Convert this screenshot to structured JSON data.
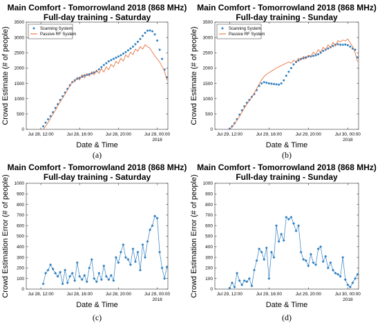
{
  "chart_data": [
    {
      "panel_id": "a",
      "type": "line",
      "caption": "(a)",
      "title_line1": "Main Comfort - Tomorrowland 2018 (868 MHz)",
      "title_line2": "Full-day training - Saturday",
      "xlabel": "Date & Time",
      "ylabel": "Crowd Estimate (# of people)",
      "xlim": [
        10.5,
        25.1
      ],
      "ylim": [
        0,
        3500
      ],
      "yticks": [
        0,
        500,
        1000,
        1500,
        2000,
        2500,
        3000,
        3500
      ],
      "xticks": [
        {
          "x": 12,
          "label": "Jul 28, 12:00"
        },
        {
          "x": 16,
          "label": "Jul 28, 16:00"
        },
        {
          "x": 20,
          "label": "Jul 28, 20:00"
        },
        {
          "x": 24,
          "label": "Jul 29, 00:00"
        }
      ],
      "year_label": "2018",
      "grid": false,
      "legend_position": "top-left",
      "series": [
        {
          "name": "Scanning System",
          "color": "#2f7fc1",
          "style": "markers",
          "x": [
            12.25,
            12.5,
            12.75,
            13.0,
            13.25,
            13.5,
            13.75,
            14.0,
            14.25,
            14.5,
            14.75,
            15.0,
            15.25,
            15.5,
            15.75,
            16.0,
            16.25,
            16.5,
            16.75,
            17.0,
            17.25,
            17.5,
            17.75,
            18.0,
            18.25,
            18.5,
            18.75,
            19.0,
            19.25,
            19.5,
            19.75,
            20.0,
            20.25,
            20.5,
            20.75,
            21.0,
            21.25,
            21.5,
            21.75,
            22.0,
            22.25,
            22.5,
            22.75,
            23.0,
            23.25,
            23.5,
            23.75,
            24.0,
            24.25,
            24.5,
            24.75,
            25.0
          ],
          "y": [
            100,
            220,
            330,
            430,
            560,
            700,
            820,
            960,
            1080,
            1200,
            1320,
            1440,
            1540,
            1600,
            1650,
            1680,
            1720,
            1760,
            1780,
            1800,
            1830,
            1860,
            1900,
            1960,
            2030,
            2100,
            2160,
            2220,
            2260,
            2300,
            2340,
            2380,
            2420,
            2470,
            2520,
            2580,
            2640,
            2700,
            2780,
            2860,
            2950,
            3050,
            3150,
            3220,
            3230,
            3200,
            3100,
            2900,
            2600,
            2300,
            1950,
            1700
          ]
        },
        {
          "name": "Passive RF System",
          "color": "#e4632b",
          "style": "line",
          "x": [
            12.25,
            12.5,
            12.75,
            13.0,
            13.25,
            13.5,
            13.75,
            14.0,
            14.25,
            14.5,
            14.75,
            15.0,
            15.25,
            15.5,
            15.75,
            16.0,
            16.25,
            16.5,
            16.75,
            17.0,
            17.25,
            17.5,
            17.75,
            18.0,
            18.25,
            18.5,
            18.75,
            19.0,
            19.25,
            19.5,
            19.75,
            20.0,
            20.25,
            20.5,
            20.75,
            21.0,
            21.25,
            21.5,
            21.75,
            22.0,
            22.25,
            22.5,
            22.75,
            23.0,
            23.25,
            23.5,
            23.75,
            24.0,
            24.25,
            24.5,
            24.75,
            25.0
          ],
          "y": [
            0,
            100,
            220,
            360,
            500,
            620,
            770,
            900,
            1020,
            1150,
            1290,
            1420,
            1560,
            1550,
            1700,
            1610,
            1780,
            1680,
            1820,
            1740,
            1880,
            1780,
            1930,
            1830,
            1980,
            1870,
            2040,
            1950,
            2120,
            2040,
            2220,
            2150,
            2320,
            2230,
            2430,
            2350,
            2520,
            2440,
            2620,
            2550,
            2700,
            2620,
            2760,
            2700,
            2650,
            2520,
            2400,
            2300,
            2200,
            2050,
            1900,
            1600
          ]
        }
      ]
    },
    {
      "panel_id": "b",
      "type": "line",
      "caption": "(b)",
      "title_line1": "Main Comfort - Tomorrowland 2018 (868 MHz)",
      "title_line2": "Full-day training - Sunday",
      "xlabel": "Date & Time",
      "ylabel": "Crowd Estimate (# of people)",
      "xlim": [
        10.5,
        25.1
      ],
      "ylim": [
        0,
        3500
      ],
      "yticks": [
        0,
        500,
        1000,
        1500,
        2000,
        2500,
        3000,
        3500
      ],
      "xticks": [
        {
          "x": 12,
          "label": "Jul 29, 12:00"
        },
        {
          "x": 16,
          "label": "Jul 29, 16:00"
        },
        {
          "x": 20,
          "label": "Jul 29, 20:00"
        },
        {
          "x": 24,
          "label": "Jul 30, 00:00"
        }
      ],
      "year_label": "2018",
      "grid": false,
      "legend_position": "top-left",
      "series": [
        {
          "name": "Scanning System",
          "color": "#2f7fc1",
          "style": "markers",
          "x": [
            12.0,
            12.25,
            12.5,
            12.75,
            13.0,
            13.25,
            13.5,
            13.75,
            14.0,
            14.25,
            14.5,
            14.75,
            15.0,
            15.25,
            15.5,
            15.75,
            16.0,
            16.25,
            16.5,
            16.75,
            17.0,
            17.25,
            17.5,
            17.75,
            18.0,
            18.25,
            18.5,
            18.75,
            19.0,
            19.25,
            19.5,
            19.75,
            20.0,
            20.25,
            20.5,
            20.75,
            21.0,
            21.25,
            21.5,
            21.75,
            22.0,
            22.25,
            22.5,
            22.75,
            23.0,
            23.25,
            23.5,
            23.75,
            24.0,
            24.25,
            24.5,
            24.75,
            25.0
          ],
          "y": [
            20,
            100,
            200,
            330,
            480,
            620,
            750,
            870,
            960,
            1060,
            1150,
            1280,
            1420,
            1500,
            1540,
            1520,
            1500,
            1490,
            1480,
            1470,
            1460,
            1500,
            1600,
            1750,
            1880,
            2000,
            2120,
            2200,
            2250,
            2300,
            2320,
            2350,
            2380,
            2380,
            2400,
            2420,
            2450,
            2500,
            2560,
            2600,
            2640,
            2680,
            2720,
            2760,
            2780,
            2760,
            2760,
            2770,
            2750,
            2700,
            2640,
            2600,
            2350
          ]
        },
        {
          "name": "Passive RF System",
          "color": "#e4632b",
          "style": "line",
          "x": [
            12.0,
            12.25,
            12.5,
            12.75,
            13.0,
            13.25,
            13.5,
            13.75,
            14.0,
            14.25,
            14.5,
            14.75,
            15.0,
            15.25,
            15.5,
            15.75,
            16.0,
            16.25,
            16.5,
            16.75,
            17.0,
            17.25,
            17.5,
            17.75,
            18.0,
            18.25,
            18.5,
            18.75,
            19.0,
            19.25,
            19.5,
            19.75,
            20.0,
            20.25,
            20.5,
            20.75,
            21.0,
            21.25,
            21.5,
            21.75,
            22.0,
            22.25,
            22.5,
            22.75,
            23.0,
            23.25,
            23.5,
            23.75,
            24.0,
            24.25,
            24.5,
            24.75,
            25.0
          ],
          "y": [
            0,
            80,
            180,
            300,
            420,
            560,
            700,
            820,
            930,
            1050,
            1180,
            1330,
            1480,
            1620,
            1720,
            1800,
            1850,
            1900,
            1950,
            2000,
            2040,
            2080,
            2120,
            2160,
            2200,
            2160,
            2260,
            2200,
            2320,
            2260,
            2380,
            2300,
            2420,
            2380,
            2520,
            2440,
            2600,
            2520,
            2680,
            2600,
            2760,
            2660,
            2840,
            2720,
            2900,
            2850,
            2920,
            2880,
            2950,
            2820,
            2700,
            2500,
            2200
          ]
        }
      ]
    },
    {
      "panel_id": "c",
      "type": "line",
      "caption": "(c)",
      "title_line1": "Main Comfort - Tomorrowland 2018 (868 MHz)",
      "title_line2": "Full-day training - Saturday",
      "xlabel": "Date & Time",
      "ylabel": "Crowd Estimation Error (# of people)",
      "xlim": [
        10.5,
        25.1
      ],
      "ylim": [
        0,
        1000
      ],
      "yticks": [
        0,
        100,
        200,
        300,
        400,
        500,
        600,
        700,
        800,
        900,
        1000
      ],
      "xticks": [
        {
          "x": 12,
          "label": "Jul 28, 12:00"
        },
        {
          "x": 16,
          "label": "Jul 28, 16:00"
        },
        {
          "x": 20,
          "label": "Jul 28, 20:00"
        },
        {
          "x": 24,
          "label": "Jul 29, 00:00"
        }
      ],
      "year_label": "2018",
      "grid": false,
      "series": [
        {
          "color": "#2f7fc1",
          "style": "line-markers",
          "x": [
            12.25,
            12.5,
            12.75,
            13.0,
            13.25,
            13.5,
            13.75,
            14.0,
            14.25,
            14.5,
            14.75,
            15.0,
            15.25,
            15.5,
            15.75,
            16.0,
            16.25,
            16.5,
            16.75,
            17.0,
            17.25,
            17.5,
            17.75,
            18.0,
            18.25,
            18.5,
            18.75,
            19.0,
            19.25,
            19.5,
            19.75,
            20.0,
            20.25,
            20.5,
            20.75,
            21.0,
            21.25,
            21.5,
            21.75,
            22.0,
            22.25,
            22.5,
            22.75,
            23.0,
            23.25,
            23.5,
            23.75,
            24.0,
            24.25,
            24.5,
            24.75,
            25.0
          ],
          "y": [
            50,
            150,
            180,
            230,
            190,
            150,
            120,
            160,
            50,
            180,
            60,
            120,
            150,
            80,
            250,
            120,
            90,
            130,
            70,
            200,
            280,
            100,
            70,
            150,
            90,
            220,
            120,
            90,
            130,
            80,
            300,
            250,
            350,
            420,
            300,
            280,
            230,
            380,
            260,
            350,
            180,
            420,
            300,
            450,
            560,
            600,
            690,
            670,
            350,
            200,
            100,
            210
          ]
        }
      ]
    },
    {
      "panel_id": "d",
      "type": "line",
      "caption": "(d)",
      "title_line1": "Main Comfort - Tomorrowland 2018 (868 MHz)",
      "title_line2": "Full-day training - Sunday",
      "xlabel": "Date & Time",
      "ylabel": "Crowd Estimation Error (# of people)",
      "xlim": [
        10.5,
        25.1
      ],
      "ylim": [
        0,
        1000
      ],
      "yticks": [
        0,
        100,
        200,
        300,
        400,
        500,
        600,
        700,
        800,
        900,
        1000
      ],
      "xticks": [
        {
          "x": 12,
          "label": "Jul 29, 12:00"
        },
        {
          "x": 16,
          "label": "Jul 29, 16:00"
        },
        {
          "x": 20,
          "label": "Jul 29, 20:00"
        },
        {
          "x": 24,
          "label": "Jul 30, 00:00"
        }
      ],
      "year_label": "2018",
      "grid": false,
      "series": [
        {
          "color": "#2f7fc1",
          "style": "line-markers",
          "x": [
            12.0,
            12.25,
            12.5,
            12.75,
            13.0,
            13.25,
            13.5,
            13.75,
            14.0,
            14.25,
            14.5,
            14.75,
            15.0,
            15.25,
            15.5,
            15.75,
            16.0,
            16.25,
            16.5,
            16.75,
            17.0,
            17.25,
            17.5,
            17.75,
            18.0,
            18.25,
            18.5,
            18.75,
            19.0,
            19.25,
            19.5,
            19.75,
            20.0,
            20.25,
            20.5,
            20.75,
            21.0,
            21.25,
            21.5,
            21.75,
            22.0,
            22.25,
            22.5,
            22.75,
            23.0,
            23.25,
            23.5,
            23.75,
            24.0,
            24.25,
            24.5,
            24.75,
            25.0
          ],
          "y": [
            10,
            60,
            20,
            150,
            80,
            40,
            80,
            70,
            100,
            30,
            180,
            270,
            380,
            350,
            280,
            390,
            100,
            350,
            300,
            600,
            450,
            520,
            460,
            680,
            660,
            680,
            620,
            550,
            600,
            350,
            280,
            270,
            220,
            330,
            250,
            230,
            380,
            400,
            260,
            310,
            200,
            250,
            180,
            150,
            140,
            120,
            300,
            90,
            40,
            20,
            60,
            100,
            140
          ]
        }
      ]
    }
  ]
}
